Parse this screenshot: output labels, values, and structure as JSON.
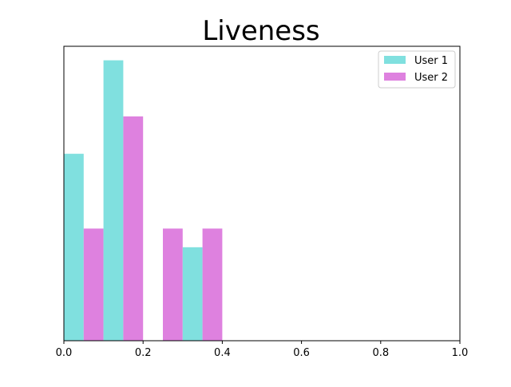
{
  "chart_data": {
    "type": "bar",
    "title": "Liveness",
    "xlabel": "",
    "ylabel": "",
    "xlim": [
      0.0,
      1.0
    ],
    "ylim": [
      0,
      3.15
    ],
    "y_ticks_visible": false,
    "x_ticks": [
      "0.0",
      "0.2",
      "0.4",
      "0.6",
      "0.8",
      "1.0"
    ],
    "x_tick_values": [
      0.0,
      0.2,
      0.4,
      0.6,
      0.8,
      1.0
    ],
    "grid": false,
    "legend_position": "upper-right",
    "bins": [
      [
        0.0,
        0.1
      ],
      [
        0.1,
        0.2
      ],
      [
        0.2,
        0.3
      ],
      [
        0.3,
        0.4
      ]
    ],
    "series": [
      {
        "name": "User 1",
        "color": "#80e0df",
        "values": [
          2.0,
          3.0,
          0,
          1.0
        ]
      },
      {
        "name": "User 2",
        "color": "#de81df",
        "values": [
          1.2,
          2.4,
          1.2,
          1.2
        ]
      }
    ]
  }
}
